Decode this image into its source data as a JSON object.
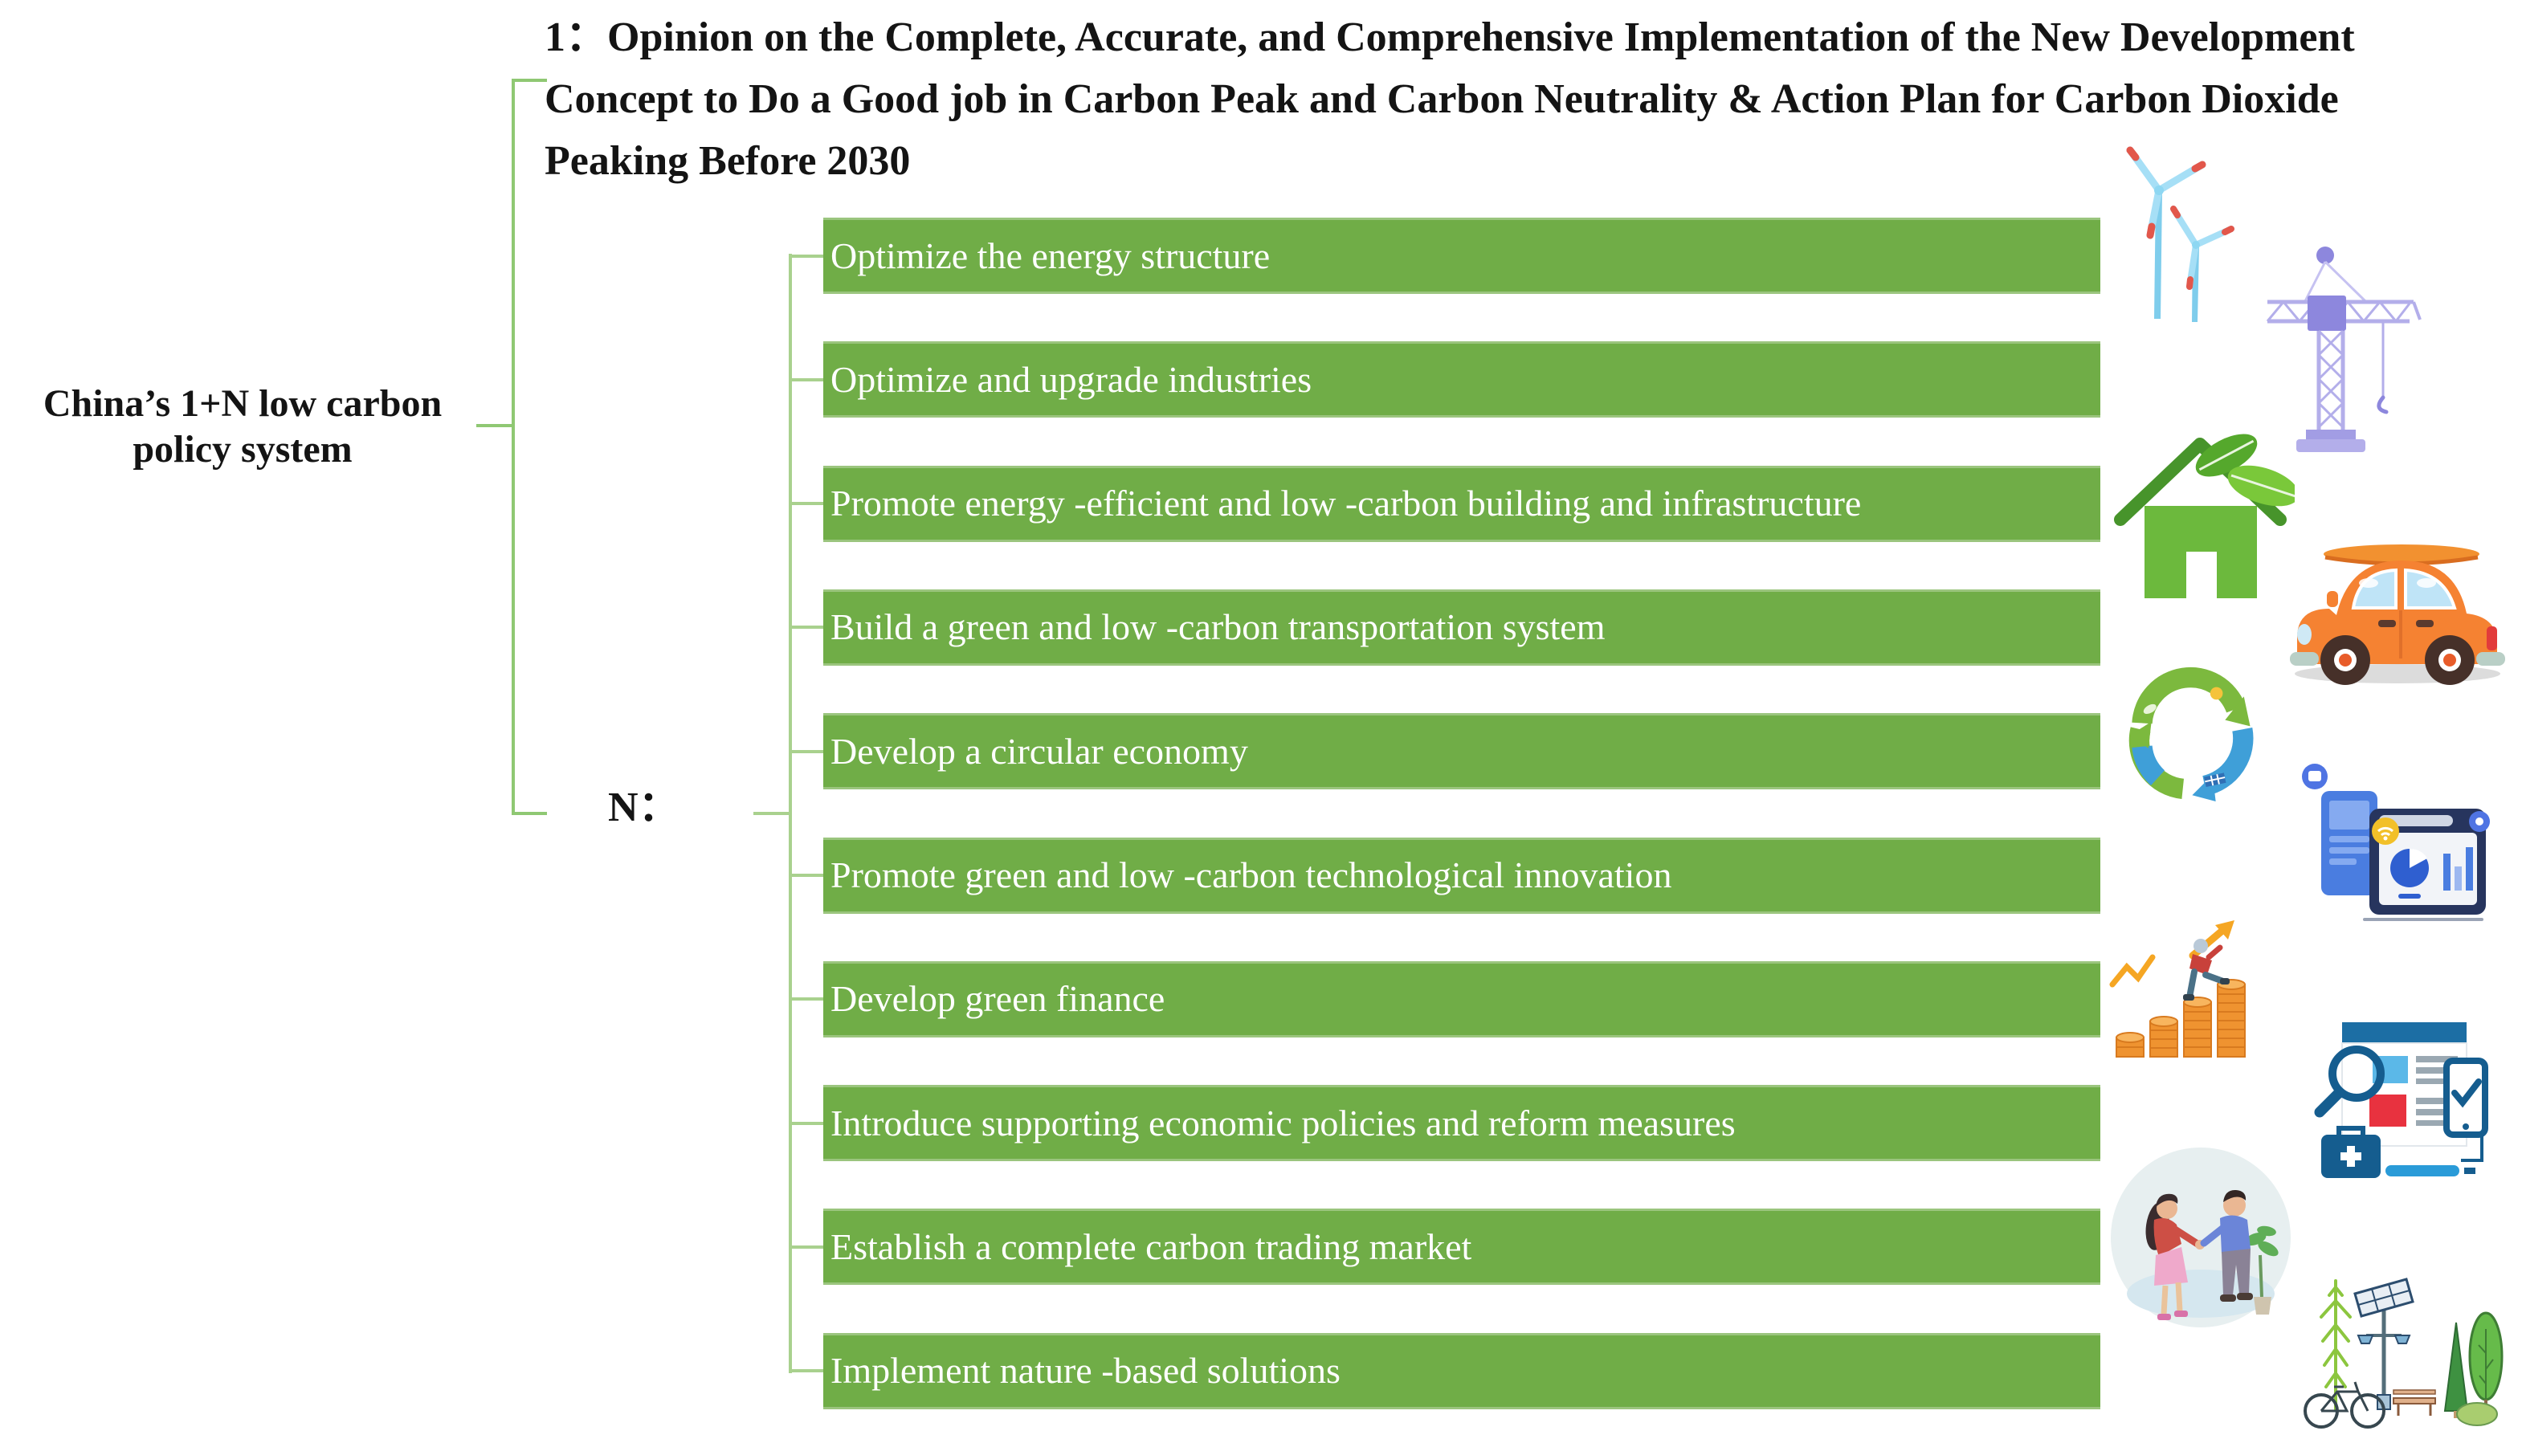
{
  "figure": {
    "root_label": "China’s 1+N low carbon policy system",
    "branch_one_title": "1：Opinion on the Complete, Accurate, and Comprehensive Implementation of the New Development Concept to Do a Good job in Carbon Peak and Carbon Neutrality & Action Plan for Carbon Dioxide Peaking Before 2030",
    "branch_n_label": "N：",
    "policies": [
      "Optimize the energy structure",
      "Optimize and upgrade industries",
      "Promote energy -efficient and low -carbon building and infrastructure",
      "Build a green and low -carbon transportation system",
      "Develop a circular economy",
      "Promote green and low -carbon technological innovation",
      "Develop green finance",
      "Introduce supporting economic policies and reform measures",
      "Establish a complete carbon trading market",
      "Implement nature -based solutions"
    ],
    "icons": [
      "wind-turbines-icon",
      "construction-crane-icon",
      "eco-house-icon",
      "car-icon",
      "recycling-economy-icon",
      "analytics-dashboard-icon",
      "finance-growth-icon",
      "policy-audit-icon",
      "handshake-icon",
      "nature-solutions-icon"
    ],
    "colors": {
      "bar_green": "#70AD47",
      "connector_green": "#8FC873",
      "connector_light_green": "#A9D18E",
      "bar_text": "#FFFFFF",
      "heading_text": "#141414"
    }
  }
}
